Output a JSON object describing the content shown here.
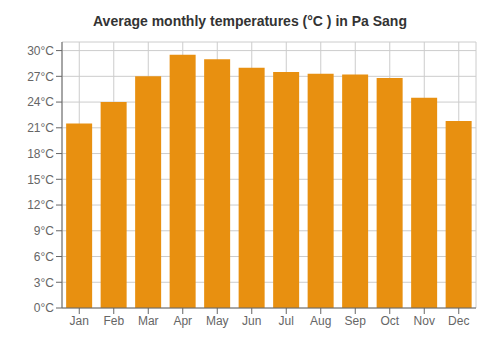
{
  "chart_data": {
    "type": "bar",
    "title": "Average monthly temperatures (°C ) in Pa Sang",
    "categories": [
      "Jan",
      "Feb",
      "Mar",
      "Apr",
      "May",
      "Jun",
      "Jul",
      "Aug",
      "Sep",
      "Oct",
      "Nov",
      "Dec"
    ],
    "values": [
      21.5,
      24.0,
      27.0,
      29.5,
      29.0,
      28.0,
      27.5,
      27.3,
      27.2,
      26.8,
      24.5,
      21.8
    ],
    "color": "#E89010",
    "ylim": [
      0,
      31
    ],
    "yticks": [
      {
        "value": 0,
        "label": "0°C"
      },
      {
        "value": 3,
        "label": "3°C"
      },
      {
        "value": 6,
        "label": "6°C"
      },
      {
        "value": 9,
        "label": "9°C"
      },
      {
        "value": 12,
        "label": "12°C"
      },
      {
        "value": 15,
        "label": "15°C"
      },
      {
        "value": 18,
        "label": "18°C"
      },
      {
        "value": 21,
        "label": "21°C"
      },
      {
        "value": 24,
        "label": "24°C"
      },
      {
        "value": 27,
        "label": "27°C"
      },
      {
        "value": 30,
        "label": "30°C"
      }
    ],
    "grid": true
  }
}
